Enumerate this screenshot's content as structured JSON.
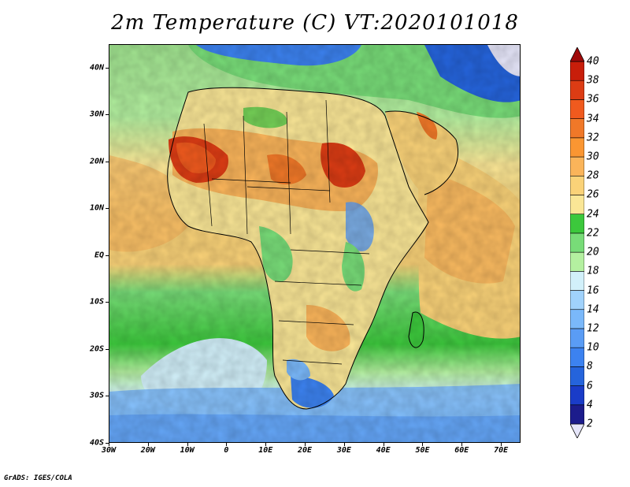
{
  "title": "2m Temperature (C) VT:2020101018",
  "credit": "GrADS: IGES/COLA",
  "map": {
    "lon_range": [
      -30,
      75
    ],
    "lat_range": [
      -40,
      45
    ],
    "lat_labels": [
      "40N",
      "30N",
      "20N",
      "10N",
      "EQ",
      "10S",
      "20S",
      "30S",
      "40S"
    ],
    "lat_values": [
      40,
      30,
      20,
      10,
      0,
      -10,
      -20,
      -30,
      -40
    ],
    "lon_labels": [
      "30W",
      "20W",
      "10W",
      "0",
      "10E",
      "20E",
      "30E",
      "40E",
      "50E",
      "60E",
      "70E"
    ],
    "lon_values": [
      -30,
      -20,
      -10,
      0,
      10,
      20,
      30,
      40,
      50,
      60,
      70
    ]
  },
  "legend": {
    "levels": [
      "2",
      "4",
      "6",
      "8",
      "10",
      "12",
      "14",
      "16",
      "18",
      "20",
      "22",
      "24",
      "26",
      "28",
      "30",
      "32",
      "34",
      "36",
      "38",
      "40"
    ],
    "colors": [
      "#e6e6fa",
      "#1c1c8c",
      "#1a3cc8",
      "#2564dc",
      "#3c82f0",
      "#5a9cf5",
      "#7ab8fa",
      "#a0d2fc",
      "#d2f0fa",
      "#b4f0a0",
      "#78dc78",
      "#3cc83c",
      "#fae696",
      "#fad278",
      "#fab45a",
      "#fa9632",
      "#f07828",
      "#f05a1e",
      "#dc3c14",
      "#c81e0a",
      "#a00a0a"
    ]
  }
}
